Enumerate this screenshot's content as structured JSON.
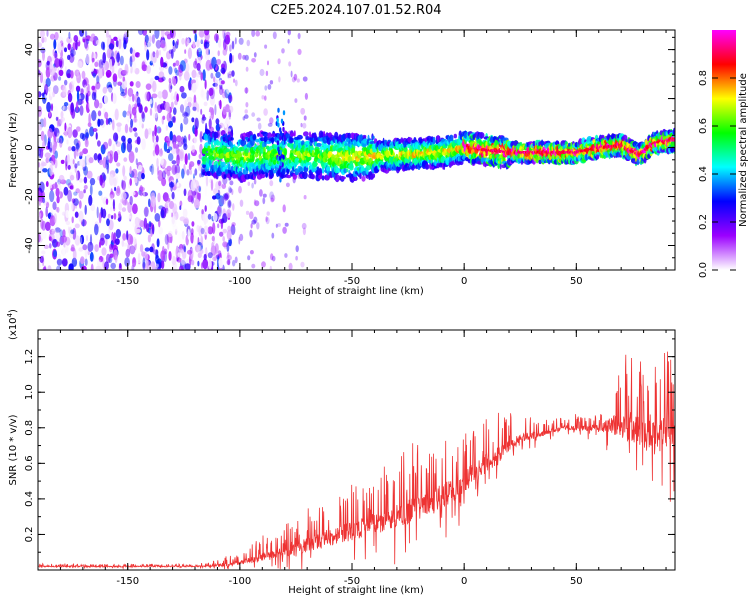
{
  "title": "C2E5.2024.107.01.52.R04",
  "chart_data": [
    {
      "type": "heatmap",
      "name": "spectrogram",
      "xlabel": "Height of straight line (km)",
      "ylabel": "Frequency (Hz)",
      "xlim": [
        -190,
        94
      ],
      "ylim": [
        -50,
        48
      ],
      "xticks": [
        -150,
        -100,
        -50,
        0,
        50
      ],
      "yticks": [
        -40,
        -20,
        0,
        20,
        40
      ],
      "ridge": [
        {
          "x": -115,
          "y": -2
        },
        {
          "x": -100,
          "y": -4
        },
        {
          "x": -90,
          "y": -3
        },
        {
          "x": -75,
          "y": -3
        },
        {
          "x": -50,
          "y": -4
        },
        {
          "x": -30,
          "y": -3
        },
        {
          "x": -10,
          "y": -2
        },
        {
          "x": 0,
          "y": 0
        },
        {
          "x": 10,
          "y": -1
        },
        {
          "x": 20,
          "y": -2
        },
        {
          "x": 35,
          "y": -2
        },
        {
          "x": 50,
          "y": -2
        },
        {
          "x": 60,
          "y": 0
        },
        {
          "x": 70,
          "y": 1
        },
        {
          "x": 78,
          "y": -3
        },
        {
          "x": 85,
          "y": 2
        },
        {
          "x": 94,
          "y": 3
        }
      ],
      "noise_region_x": [
        -190,
        -103
      ]
    },
    {
      "type": "colorbar",
      "name": "spectral-amplitude-colorbar",
      "label": "Normalized spectral amplitude",
      "range": [
        0,
        1
      ],
      "ticks": [
        "0.0",
        "0.2",
        "0.4",
        "0.6",
        "0.8"
      ],
      "tick_values": [
        0.0,
        0.2,
        0.4,
        0.6,
        0.8
      ],
      "stops": [
        "#ffffff",
        "#9b00ff",
        "#0000ff",
        "#00ffff",
        "#00ff00",
        "#ffff00",
        "#ff0000",
        "#ff00ff"
      ]
    },
    {
      "type": "line",
      "name": "snr-line",
      "xlabel": "Height of straight line (km)",
      "ylabel": "SNR (10 * v/v)",
      "scale_label": "(x10",
      "scale_exp": "4",
      "scale_close": ")",
      "xlim": [
        -190,
        94
      ],
      "ylim": [
        0,
        1.35
      ],
      "xticks": [
        -150,
        -100,
        -50,
        0,
        50
      ],
      "yticks": [
        "0.2",
        "0.4",
        "0.6",
        "0.8",
        "1.0",
        "1.2"
      ],
      "ytick_values": [
        0.2,
        0.4,
        0.6,
        0.8,
        1.0,
        1.2
      ],
      "line_color": "#ee3333",
      "envelope": [
        {
          "x": -190,
          "base": 0.02,
          "amp": 0.01
        },
        {
          "x": -120,
          "base": 0.02,
          "amp": 0.01
        },
        {
          "x": -105,
          "base": 0.03,
          "amp": 0.03
        },
        {
          "x": -90,
          "base": 0.07,
          "amp": 0.08
        },
        {
          "x": -75,
          "base": 0.12,
          "amp": 0.12
        },
        {
          "x": -50,
          "base": 0.22,
          "amp": 0.18
        },
        {
          "x": -30,
          "base": 0.3,
          "amp": 0.22
        },
        {
          "x": -15,
          "base": 0.38,
          "amp": 0.25
        },
        {
          "x": -5,
          "base": 0.45,
          "amp": 0.22
        },
        {
          "x": 10,
          "base": 0.6,
          "amp": 0.2
        },
        {
          "x": 25,
          "base": 0.74,
          "amp": 0.08
        },
        {
          "x": 45,
          "base": 0.8,
          "amp": 0.04
        },
        {
          "x": 60,
          "base": 0.8,
          "amp": 0.06
        },
        {
          "x": 72,
          "base": 0.82,
          "amp": 0.28
        },
        {
          "x": 85,
          "base": 0.75,
          "amp": 0.3
        },
        {
          "x": 94,
          "base": 0.8,
          "amp": 0.4
        }
      ]
    }
  ]
}
